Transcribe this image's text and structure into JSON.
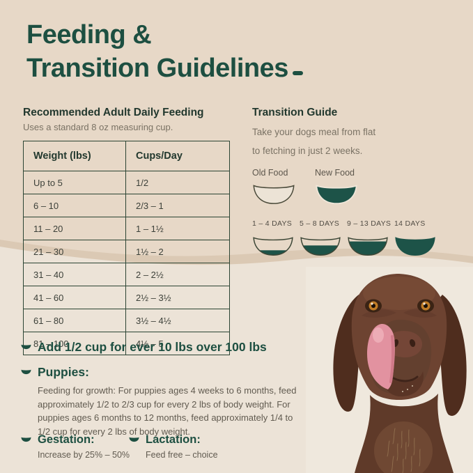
{
  "title": {
    "line1": "Feeding &",
    "line2": "Transition Guidelines"
  },
  "feeding": {
    "heading": "Recommended Adult Daily Feeding",
    "subheading": "Uses a standard 8 oz measuring cup.",
    "table": {
      "headers": [
        "Weight (lbs)",
        "Cups/Day"
      ],
      "rows": [
        [
          "Up to 5",
          "1/2"
        ],
        [
          "6 – 10",
          "2/3 – 1"
        ],
        [
          "11 – 20",
          "1 – 1½"
        ],
        [
          "21 – 30",
          "1½ – 2"
        ],
        [
          "31 – 40",
          "2 – 2½"
        ],
        [
          "41 – 60",
          "2½ – 3½"
        ],
        [
          "61 – 80",
          "3½ – 4½"
        ],
        [
          "81 – 100",
          "4½ – 5"
        ]
      ]
    }
  },
  "transition": {
    "heading": "Transition Guide",
    "subheading_line1": "Take your dogs meal from flat",
    "subheading_line2": "to fetching in just 2 weeks.",
    "legend": {
      "old_label": "Old Food",
      "new_label": "New Food"
    },
    "stages": [
      {
        "label": "1 – 4 DAYS",
        "fill_pct": 30
      },
      {
        "label": "5 – 8 DAYS",
        "fill_pct": 60
      },
      {
        "label": "9 – 13 DAYS",
        "fill_pct": 85
      },
      {
        "label": "14 DAYS",
        "fill_pct": 100
      }
    ]
  },
  "notes": {
    "add_note": "Add 1/2 cup for ever 10 lbs over 100 lbs",
    "puppies_heading": "Puppies:",
    "puppies_body": "Feeding for growth: For puppies ages 4 weeks to 6 months, feed approximately 1/2 to 2/3 cup for every 2 lbs of body weight. For puppies ages 6 months to 12 months, feed approximately 1/4 to 1/2 cup for every 2 lbs of body weight.",
    "gestation_heading": "Gestation:",
    "gestation_body": "Increase by 25% – 50%",
    "lactation_heading": "Lactation:",
    "lactation_body": "Feed free – choice"
  },
  "colors": {
    "accent_green": "#1d4f41",
    "bowl_green": "#1d5348",
    "bowl_outline": "#3c4636",
    "bg_top": "#e7d8c7",
    "bg_band": "#dbc9b4",
    "bg_bottom": "#ece3d7",
    "border_green": "#2b4433"
  }
}
